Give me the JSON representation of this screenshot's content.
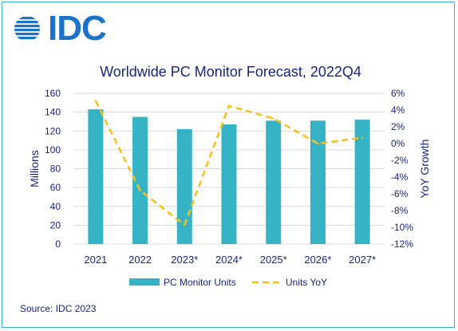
{
  "brand": {
    "logo_text": "IDC",
    "color": "#1a73c8"
  },
  "source_text": "Source: IDC 2023",
  "chart_data": {
    "type": "bar+line",
    "title": "Worldwide PC Monitor Forecast, 2022Q4",
    "categories": [
      "2021",
      "2022",
      "2023*",
      "2024*",
      "2025*",
      "2026*",
      "2027*"
    ],
    "y_left": {
      "label": "Millions",
      "ticks": [
        "0",
        "20",
        "40",
        "60",
        "80",
        "100",
        "120",
        "140",
        "160"
      ],
      "range": [
        0,
        160
      ]
    },
    "y_right": {
      "label": "YoY Growth",
      "ticks": [
        "6%",
        "4%",
        "2%",
        "0%",
        "-2%",
        "-4%",
        "-6%",
        "-8%",
        "-10%",
        "-12%"
      ],
      "range": [
        -12,
        6
      ]
    },
    "series": [
      {
        "name": "PC Monitor Units",
        "kind": "bar",
        "axis": "left",
        "color": "#35b3c4",
        "values": [
          143,
          135,
          122,
          127,
          131,
          131,
          132
        ]
      },
      {
        "name": "Units YoY",
        "kind": "line",
        "axis": "right",
        "color": "#f5bf1e",
        "style": "dashed",
        "values": [
          5.1,
          -5.6,
          -9.7,
          4.5,
          3.0,
          0.0,
          0.7
        ]
      }
    ],
    "grid": "horizontal",
    "legend_position": "bottom"
  },
  "colors": {
    "title": "#1a237e",
    "axis_text": "#1a237e",
    "grid": "#d9d9d9",
    "frame": "#34b3c7"
  }
}
